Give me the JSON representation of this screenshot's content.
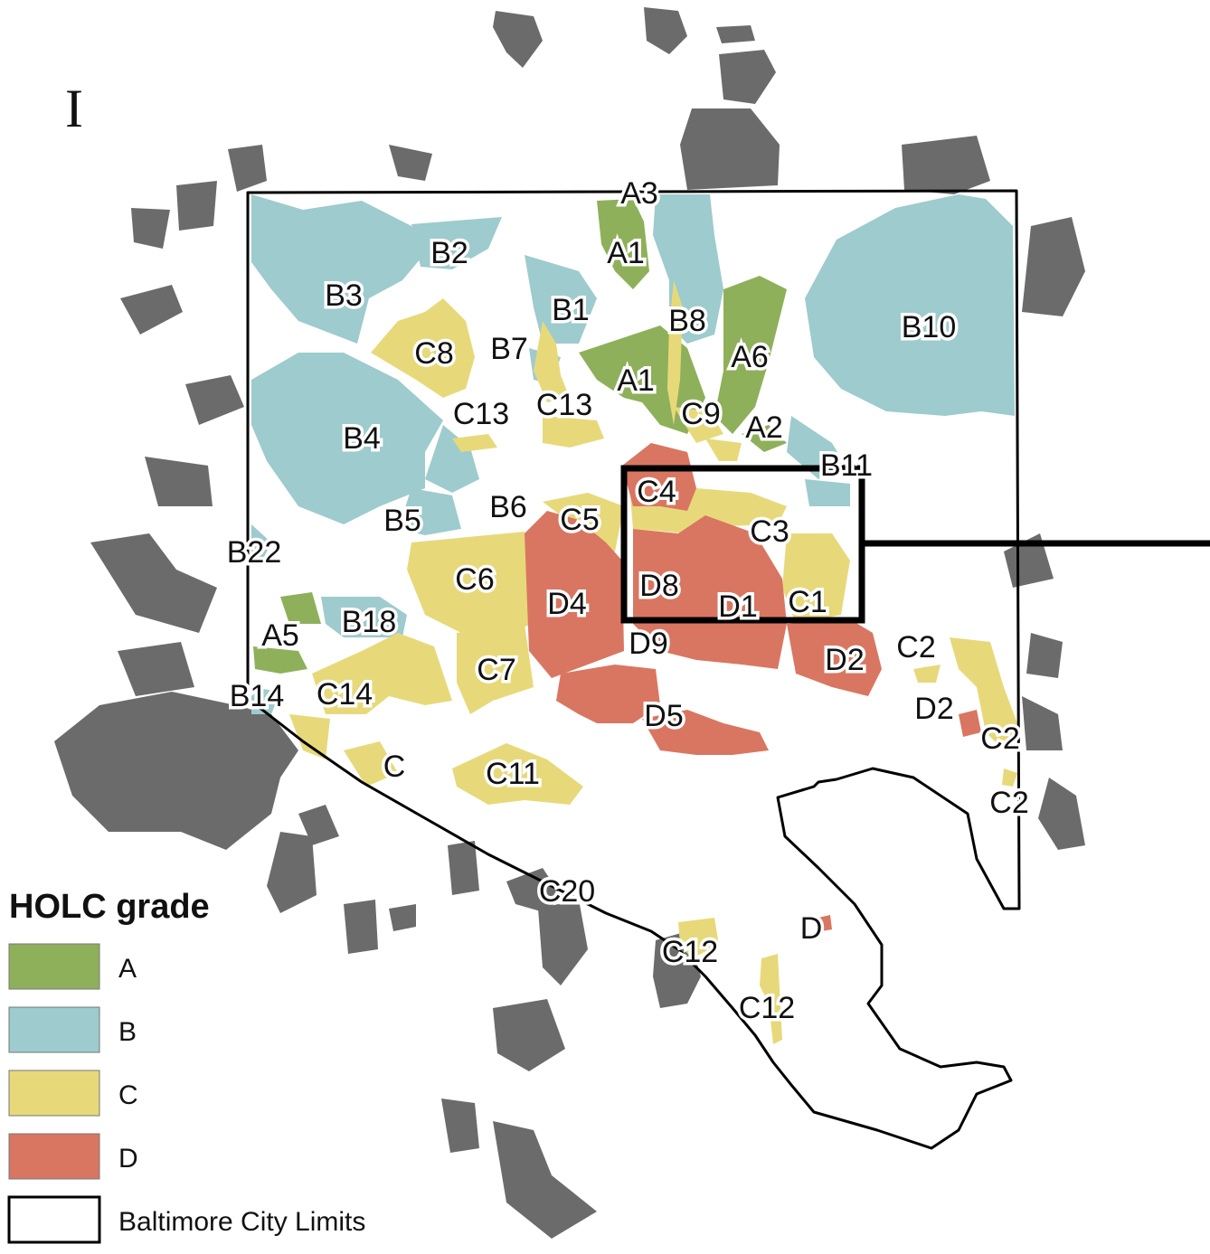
{
  "panel_letter": "I",
  "legend": {
    "title": "HOLC grade",
    "items": [
      {
        "label": "A",
        "color": "#8fb05a"
      },
      {
        "label": "B",
        "color": "#9ecbcd"
      },
      {
        "label": "C",
        "color": "#e7d97a"
      },
      {
        "label": "D",
        "color": "#d97662"
      },
      {
        "label": "Baltimore City Limits",
        "color": "#ffffff"
      }
    ]
  },
  "colors": {
    "grade_A": "#8fb05a",
    "grade_B": "#9ecbcd",
    "grade_C": "#e7d97a",
    "grade_D": "#d97662",
    "outside_areas": "#6b6b6b",
    "city_limits_outline": "#000000"
  },
  "zones": [
    {
      "label": "A3",
      "grade": "A"
    },
    {
      "label": "A1",
      "grade": "A"
    },
    {
      "label": "B2",
      "grade": "B"
    },
    {
      "label": "B3",
      "grade": "B"
    },
    {
      "label": "B1",
      "grade": "B"
    },
    {
      "label": "B8",
      "grade": "B"
    },
    {
      "label": "B10",
      "grade": "B"
    },
    {
      "label": "C8",
      "grade": "C"
    },
    {
      "label": "B7",
      "grade": "B"
    },
    {
      "label": "A6",
      "grade": "A"
    },
    {
      "label": "A1",
      "grade": "A"
    },
    {
      "label": "C13",
      "grade": "C"
    },
    {
      "label": "C13",
      "grade": "C"
    },
    {
      "label": "C9",
      "grade": "C"
    },
    {
      "label": "A2",
      "grade": "A"
    },
    {
      "label": "B4",
      "grade": "B"
    },
    {
      "label": "B11",
      "grade": "B"
    },
    {
      "label": "C4",
      "grade": "C"
    },
    {
      "label": "B6",
      "grade": "B"
    },
    {
      "label": "C5",
      "grade": "C"
    },
    {
      "label": "B5",
      "grade": "B"
    },
    {
      "label": "C3",
      "grade": "C"
    },
    {
      "label": "B22",
      "grade": "B"
    },
    {
      "label": "C6",
      "grade": "C"
    },
    {
      "label": "D8",
      "grade": "D"
    },
    {
      "label": "D4",
      "grade": "D"
    },
    {
      "label": "D1",
      "grade": "D"
    },
    {
      "label": "C1",
      "grade": "C"
    },
    {
      "label": "A5",
      "grade": "A"
    },
    {
      "label": "B18",
      "grade": "B"
    },
    {
      "label": "D9",
      "grade": "D"
    },
    {
      "label": "D2",
      "grade": "D"
    },
    {
      "label": "C2",
      "grade": "C"
    },
    {
      "label": "C7",
      "grade": "C"
    },
    {
      "label": "B14",
      "grade": "B"
    },
    {
      "label": "C14",
      "grade": "C"
    },
    {
      "label": "D5",
      "grade": "D"
    },
    {
      "label": "D2",
      "grade": "D"
    },
    {
      "label": "C2",
      "grade": "C"
    },
    {
      "label": "C",
      "grade": "C"
    },
    {
      "label": "C11",
      "grade": "C"
    },
    {
      "label": "C2",
      "grade": "C"
    },
    {
      "label": "C20",
      "grade": "C"
    },
    {
      "label": "D",
      "grade": "D"
    },
    {
      "label": "C12",
      "grade": "C"
    },
    {
      "label": "C12",
      "grade": "C"
    }
  ]
}
